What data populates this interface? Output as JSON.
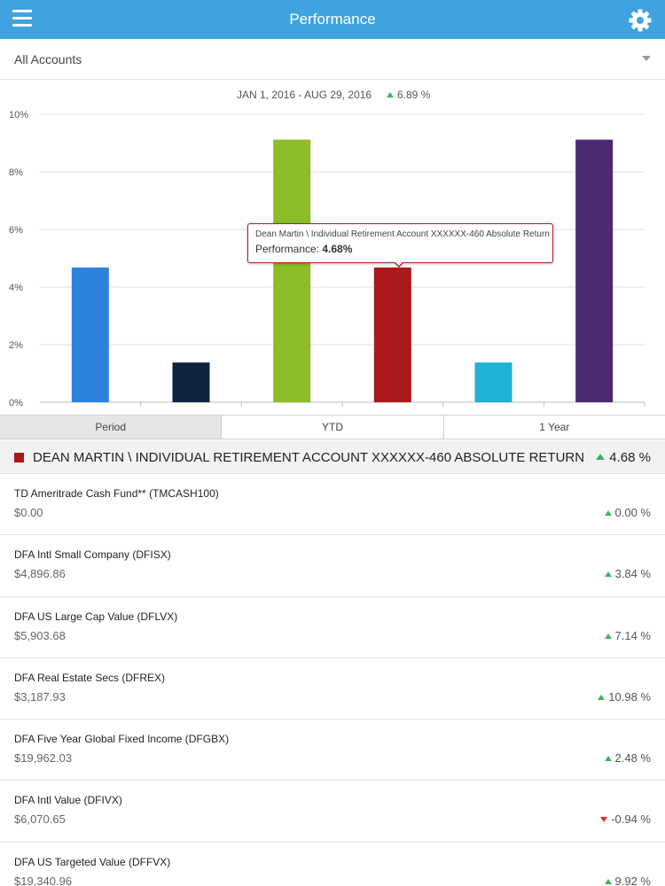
{
  "navbar": {
    "title": "Performance",
    "menu_icon": "hamburger-menu-icon",
    "settings_icon": "gear-icon"
  },
  "account_selector": {
    "selected": "All Accounts"
  },
  "chart_header": {
    "date_range": "JAN 1, 2016 - AUG 29, 2016",
    "change": "6.89 %",
    "direction": "up"
  },
  "chart_data": {
    "type": "bar",
    "categories": [
      "",
      "",
      "",
      "",
      "",
      ""
    ],
    "values": [
      4.68,
      1.38,
      9.12,
      4.68,
      1.38,
      9.12
    ],
    "colors": [
      "#2d82db",
      "#0e2440",
      "#8cbc28",
      "#aa1a1a",
      "#1fb1d6",
      "#4b2a70"
    ],
    "ylim": [
      0,
      10
    ],
    "yticks": [
      0,
      2,
      4,
      6,
      8,
      10
    ],
    "ytick_labels": [
      "0%",
      "2%",
      "4%",
      "6%",
      "8%",
      "10%"
    ],
    "grid": true,
    "title": "",
    "xlabel": "",
    "ylabel": ""
  },
  "tooltip": {
    "title": "Dean Martin \\ Individual Retirement Account XXXXXX-460 Absolute Return",
    "perf_label": "Performance:",
    "perf_value": "4.68%"
  },
  "segments": [
    {
      "label": "Period",
      "active": true
    },
    {
      "label": "YTD",
      "active": false
    },
    {
      "label": "1 Year",
      "active": false
    }
  ],
  "account": {
    "name": "DEAN MARTIN \\ INDIVIDUAL RETIREMENT ACCOUNT XXXXXX-460 ABSOLUTE RETURN",
    "perf": "4.68 %",
    "color": "#aa1a1a"
  },
  "holdings": [
    {
      "name": "TD Ameritrade Cash Fund** (TMCASH100)",
      "value": "$0.00",
      "perf": "0.00 %",
      "direction": "up"
    },
    {
      "name": "DFA Intl Small Company (DFISX)",
      "value": "$4,896.86",
      "perf": "3.84 %",
      "direction": "up"
    },
    {
      "name": "DFA US Large Cap Value (DFLVX)",
      "value": "$5,903.68",
      "perf": "7.14 %",
      "direction": "up"
    },
    {
      "name": "DFA Real Estate Secs (DFREX)",
      "value": "$3,187.93",
      "perf": "10.98 %",
      "direction": "up"
    },
    {
      "name": "DFA Five Year Global Fixed Income (DFGBX)",
      "value": "$19,962.03",
      "perf": "2.48 %",
      "direction": "up"
    },
    {
      "name": "DFA Intl Value (DFIVX)",
      "value": "$6,070.65",
      "perf": "-0.94 %",
      "direction": "down"
    },
    {
      "name": "DFA US Targeted Value (DFFVX)",
      "value": "$19,340.96",
      "perf": "9.92 %",
      "direction": "up"
    }
  ]
}
